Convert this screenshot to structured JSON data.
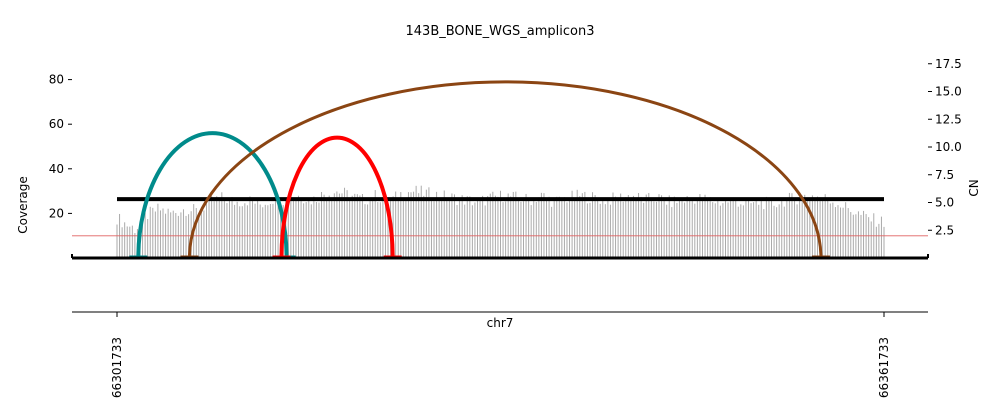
{
  "chart_data": {
    "type": "bar",
    "title": "143B_BONE_WGS_amplicon3",
    "xlabel": "chr7",
    "ylabel": "Coverage",
    "y2label": "CN",
    "xlim": [
      66301733,
      66361733
    ],
    "ylim": [
      0,
      90
    ],
    "y2lim": [
      0,
      18
    ],
    "yticks": [
      20,
      40,
      60,
      80
    ],
    "y2ticks": [
      2.5,
      5.0,
      7.5,
      10.0,
      12.5,
      15.0,
      17.5
    ],
    "y2tick_labels": [
      "2.5",
      "5.0",
      "7.5",
      "10.0",
      "12.5",
      "15.0",
      "17.5"
    ],
    "xticks": [
      66301733,
      66361733
    ],
    "xtick_labels": [
      "66301733",
      "66361733"
    ],
    "grid": false,
    "coverage_color": "#aaaaaa",
    "coverage_profile": [
      [
        66301733,
        18
      ],
      [
        66302500,
        15
      ],
      [
        66303200,
        13
      ],
      [
        66304000,
        19
      ],
      [
        66305000,
        22
      ],
      [
        66306000,
        20
      ],
      [
        66307000,
        22
      ],
      [
        66308000,
        21
      ],
      [
        66309000,
        25
      ],
      [
        66310000,
        27
      ],
      [
        66311000,
        25
      ],
      [
        66312000,
        26
      ],
      [
        66313000,
        24
      ],
      [
        66314000,
        27
      ],
      [
        66315000,
        26
      ],
      [
        66316000,
        28
      ],
      [
        66317000,
        26
      ],
      [
        66318000,
        29
      ],
      [
        66319000,
        30
      ],
      [
        66320000,
        28
      ],
      [
        66321000,
        26
      ],
      [
        66322000,
        28
      ],
      [
        66323000,
        25
      ],
      [
        66324000,
        29
      ],
      [
        66325000,
        30
      ],
      [
        66326000,
        29
      ],
      [
        66327000,
        28
      ],
      [
        66328000,
        27
      ],
      [
        66329000,
        26
      ],
      [
        66330000,
        25
      ],
      [
        66331000,
        27
      ],
      [
        66332000,
        28
      ],
      [
        66333000,
        27
      ],
      [
        66334000,
        26
      ],
      [
        66335000,
        28
      ],
      [
        66336000,
        25
      ],
      [
        66337000,
        27
      ],
      [
        66338000,
        28
      ],
      [
        66339000,
        27
      ],
      [
        66340000,
        26
      ],
      [
        66341000,
        27
      ],
      [
        66342000,
        28
      ],
      [
        66343000,
        26
      ],
      [
        66344000,
        27
      ],
      [
        66345000,
        25
      ],
      [
        66346000,
        26
      ],
      [
        66347000,
        27
      ],
      [
        66348000,
        26
      ],
      [
        66349000,
        25
      ],
      [
        66350000,
        26
      ],
      [
        66351000,
        24
      ],
      [
        66352000,
        25
      ],
      [
        66353000,
        24
      ],
      [
        66354000,
        26
      ],
      [
        66355000,
        27
      ],
      [
        66356000,
        28
      ],
      [
        66357000,
        27
      ],
      [
        66358000,
        25
      ],
      [
        66359000,
        22
      ],
      [
        66360000,
        19
      ],
      [
        66361000,
        17
      ],
      [
        66361733,
        16
      ]
    ],
    "cn_segment": {
      "start": 66301733,
      "end": 66361733,
      "cn": 5.3,
      "color": "#000000"
    },
    "cn_reference_line": {
      "cn": 2.0,
      "color": "#e06060"
    },
    "breakpoints": [
      {
        "start": 66303400,
        "end": 66315000,
        "height": 56,
        "color": "#008b8b"
      },
      {
        "start": 66307400,
        "end": 66356800,
        "height": 79,
        "color": "#8b4513"
      },
      {
        "start": 66314600,
        "end": 66323300,
        "height": 54,
        "color": "#ff0000"
      }
    ]
  }
}
